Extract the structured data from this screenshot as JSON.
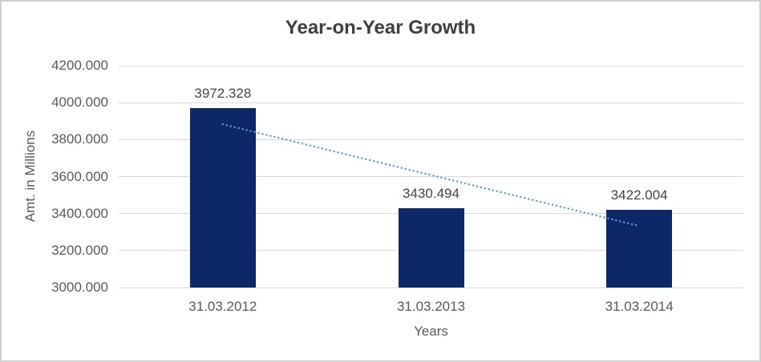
{
  "window": {
    "background_color": "#ffffff",
    "border_color": "#cfcfcf"
  },
  "chart_data": {
    "type": "bar",
    "title": "Year-on-Year Growth",
    "xlabel": "Years",
    "ylabel": "Amt. in Millions",
    "categories": [
      "31.03.2012",
      "31.03.2013",
      "31.03.2014"
    ],
    "values": [
      3972.328,
      3430.494,
      3422.004
    ],
    "data_labels": [
      "3972.328",
      "3430.494",
      "3422.004"
    ],
    "ylim": [
      3000,
      4200
    ],
    "ytick_step": 200,
    "ytick_labels": [
      "4200.000",
      "4000.000",
      "3800.000",
      "3600.000",
      "3400.000",
      "3200.000",
      "3000.000"
    ],
    "grid": true,
    "legend": false,
    "bar_color": "#0d2866",
    "gridline_color": "#d9d9d9",
    "tick_text_color": "#595959",
    "data_label_color": "#444444",
    "title_color": "#3f3f3f",
    "trendline": {
      "type": "linear",
      "style": "dotted",
      "color": "#5b9bd5",
      "start": {
        "category_index": 0,
        "value": 3883.4
      },
      "end": {
        "category_index": 2,
        "value": 3333.1
      }
    }
  }
}
